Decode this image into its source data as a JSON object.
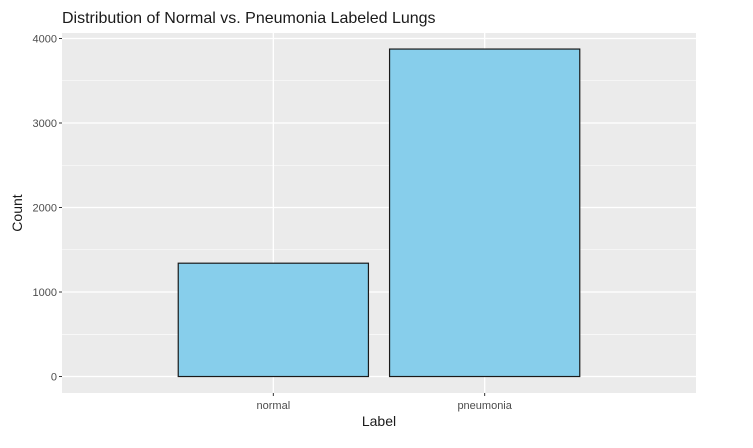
{
  "chart_data": {
    "type": "bar",
    "title": "Distribution of Normal vs. Pneumonia Labeled Lungs",
    "xlabel": "Label",
    "ylabel": "Count",
    "categories": [
      "normal",
      "pneumonia"
    ],
    "values": [
      1341,
      3875
    ],
    "ylim": [
      -195,
      4065
    ],
    "yticks": [
      0,
      1000,
      2000,
      3000,
      4000
    ],
    "grid": true,
    "legend": "none",
    "colors": {
      "panel": "#ebebeb",
      "grid": "#ffffff",
      "bar_fill": "#87ceeb",
      "bar_stroke": "#1a1a1a",
      "text": "#1a1a1a",
      "tick_text": "#4d4d4d",
      "tick_mark": "#333333"
    }
  }
}
